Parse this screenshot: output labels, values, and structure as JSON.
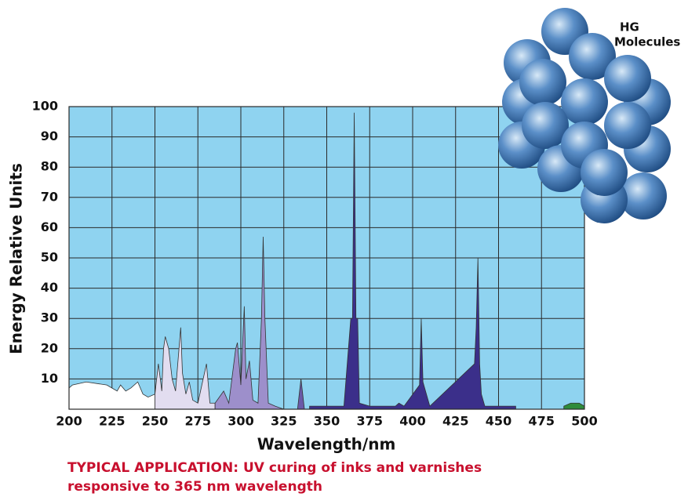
{
  "chart_data": {
    "type": "spectrum",
    "x_label": "Wavelength/nm",
    "y_label": "Energy Relative Units",
    "annotation": [
      "HG",
      "Molecules"
    ],
    "caption": [
      "TYPICAL APPLICATION: UV curing of inks and varnishes",
      "responsive to 365 nm wavelength"
    ],
    "xlim": [
      200,
      500
    ],
    "ylim": [
      0,
      100
    ],
    "xticks": [
      200,
      225,
      250,
      275,
      300,
      325,
      350,
      375,
      400,
      425,
      450,
      475,
      500
    ],
    "yticks": [
      10,
      20,
      30,
      40,
      50,
      60,
      70,
      80,
      90,
      100
    ],
    "grid": true,
    "background": "#8fd3f0",
    "segments": [
      {
        "color": "#ffffff",
        "x": [
          200,
          202,
          210,
          222,
          225,
          228,
          230,
          233,
          236,
          240,
          243,
          246,
          250
        ],
        "values": [
          7,
          8,
          9,
          8,
          7,
          6,
          8,
          6,
          7,
          9,
          5,
          4,
          5
        ]
      },
      {
        "color": "#e2ddf0",
        "x": [
          250,
          252,
          254,
          255,
          256,
          258,
          260,
          262,
          265,
          266,
          268,
          270,
          272,
          275,
          280,
          282,
          285
        ],
        "values": [
          5,
          15,
          6,
          20,
          24,
          20,
          10,
          6,
          27,
          12,
          5,
          9,
          3,
          2,
          15,
          2,
          2
        ]
      },
      {
        "color": "#9d8fcb",
        "x": [
          285,
          290,
          293,
          297,
          298,
          300,
          302,
          303,
          305,
          307,
          310,
          312,
          313,
          314,
          316,
          320,
          325
        ],
        "values": [
          2,
          6,
          2,
          20,
          22,
          8,
          34,
          10,
          16,
          3,
          2,
          30,
          57,
          30,
          2,
          1,
          0
        ]
      },
      {
        "color": "#6a5aa8",
        "x": [
          333,
          334,
          335,
          336,
          337
        ],
        "values": [
          0,
          5,
          10,
          5,
          0
        ]
      },
      {
        "color": "#3b2f8a",
        "x": [
          340,
          360,
          364,
          365,
          366,
          367,
          368,
          369,
          375,
          390,
          392,
          395,
          404,
          405,
          406,
          408,
          410,
          436,
          437,
          438,
          439,
          440,
          442,
          460
        ],
        "values": [
          1,
          1,
          30,
          30,
          98,
          30,
          30,
          2,
          1,
          1,
          2,
          1,
          8,
          30,
          9,
          5,
          1,
          15,
          27,
          50,
          15,
          5,
          1,
          1
        ]
      },
      {
        "color": "#2e8b3a",
        "x": [
          488,
          492,
          495,
          497,
          500
        ],
        "values": [
          1,
          2,
          2,
          2,
          1
        ]
      }
    ]
  }
}
